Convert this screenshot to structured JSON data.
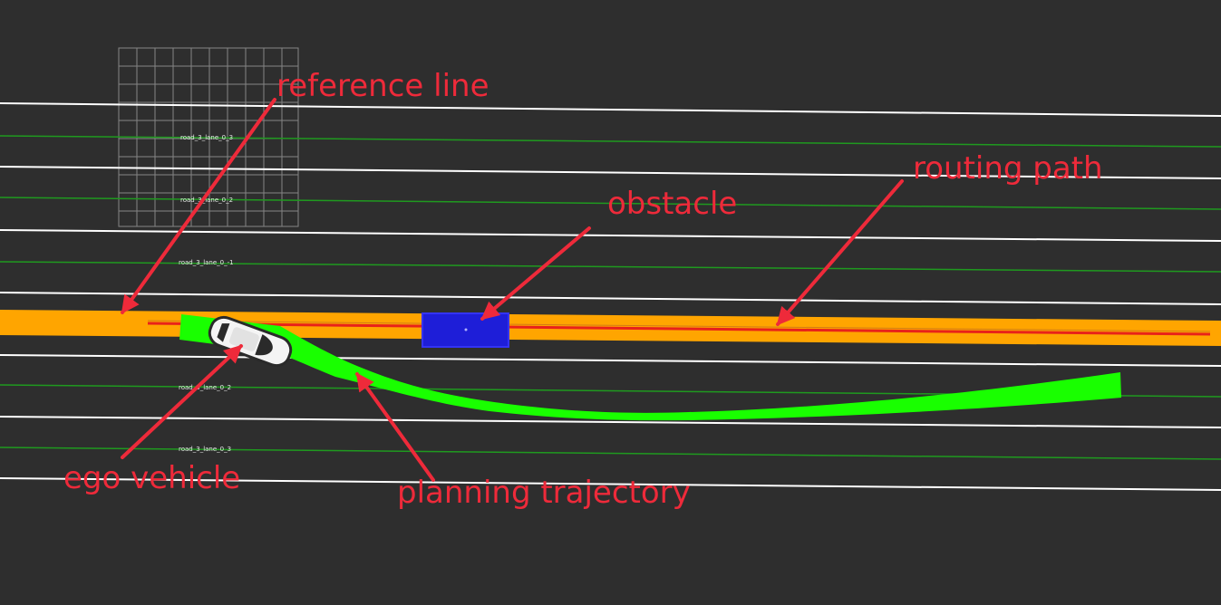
{
  "annotations": {
    "reference_line": "reference line",
    "routing_path": "routing path",
    "obstacle": "obstacle",
    "ego_vehicle": "ego vehicle",
    "planning_trajectory": "planning trajectory"
  },
  "lane_ids": [
    "road_3_lane_0_3",
    "road_3_lane_0_2",
    "road_3_lane_0_-1",
    "road_3_lane_0_2",
    "road_3_lane_0_3"
  ],
  "colors": {
    "background": "#2e2e2e",
    "lane_boundary": "#ffffff",
    "lane_center": "#1f9a1f",
    "routing_band": "#ffa500",
    "reference_line": "#e8221a",
    "trajectory": "#19ff00",
    "obstacle": "#1e1ed8",
    "annotation": "#ee2a3a",
    "grid": "#8f8f8f"
  }
}
